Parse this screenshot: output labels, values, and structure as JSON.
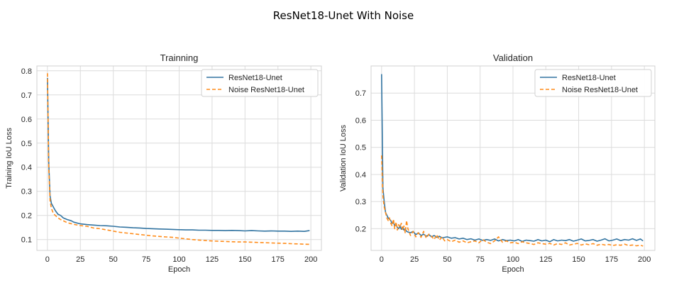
{
  "figure": {
    "title": "ResNet18-Unet With Noise"
  },
  "colors": {
    "series1": "#3274a1",
    "series2": "#ff8c1a"
  },
  "chart_data": [
    {
      "type": "line",
      "title": "Trainning",
      "xlabel": "Epoch",
      "ylabel": "Training IoU Loss",
      "xlim": [
        -8,
        208
      ],
      "ylim": [
        0.055,
        0.82
      ],
      "xticks": [
        0,
        25,
        50,
        75,
        100,
        125,
        150,
        175,
        200
      ],
      "yticks": [
        0.1,
        0.2,
        0.3,
        0.4,
        0.5,
        0.6,
        0.7,
        0.8
      ],
      "ytick_labels": [
        "0.1",
        "0.2",
        "0.3",
        "0.4",
        "0.5",
        "0.6",
        "0.7",
        "0.8"
      ],
      "grid": true,
      "legend": "top-right",
      "series": [
        {
          "name": "ResNet18-Unet",
          "style": "solid",
          "x": [
            0,
            1,
            2,
            3,
            4,
            5,
            6,
            8,
            10,
            12,
            15,
            18,
            20,
            25,
            30,
            35,
            40,
            45,
            50,
            55,
            60,
            65,
            70,
            75,
            80,
            85,
            90,
            95,
            100,
            105,
            110,
            115,
            120,
            125,
            130,
            135,
            140,
            145,
            150,
            155,
            160,
            165,
            170,
            175,
            180,
            185,
            190,
            195,
            199
          ],
          "y": [
            0.77,
            0.42,
            0.28,
            0.25,
            0.24,
            0.23,
            0.22,
            0.205,
            0.2,
            0.19,
            0.183,
            0.178,
            0.172,
            0.165,
            0.162,
            0.16,
            0.158,
            0.157,
            0.155,
            0.152,
            0.151,
            0.149,
            0.148,
            0.146,
            0.145,
            0.144,
            0.143,
            0.142,
            0.141,
            0.14,
            0.14,
            0.139,
            0.139,
            0.138,
            0.138,
            0.137,
            0.138,
            0.137,
            0.136,
            0.137,
            0.136,
            0.135,
            0.136,
            0.135,
            0.135,
            0.134,
            0.135,
            0.134,
            0.137
          ]
        },
        {
          "name": "Noise ResNet18-Unet",
          "style": "dashed",
          "x": [
            0,
            1,
            2,
            3,
            4,
            5,
            6,
            8,
            10,
            12,
            15,
            18,
            20,
            25,
            30,
            35,
            40,
            45,
            50,
            55,
            60,
            65,
            70,
            75,
            80,
            85,
            90,
            95,
            100,
            105,
            110,
            115,
            120,
            125,
            130,
            135,
            140,
            145,
            150,
            155,
            160,
            165,
            170,
            175,
            180,
            185,
            190,
            195,
            199
          ],
          "y": [
            0.79,
            0.4,
            0.26,
            0.23,
            0.215,
            0.205,
            0.2,
            0.19,
            0.183,
            0.178,
            0.17,
            0.166,
            0.163,
            0.158,
            0.155,
            0.148,
            0.145,
            0.14,
            0.135,
            0.13,
            0.127,
            0.124,
            0.121,
            0.118,
            0.115,
            0.113,
            0.111,
            0.109,
            0.106,
            0.103,
            0.1,
            0.098,
            0.096,
            0.094,
            0.093,
            0.092,
            0.091,
            0.09,
            0.09,
            0.089,
            0.088,
            0.087,
            0.086,
            0.085,
            0.084,
            0.083,
            0.082,
            0.081,
            0.08
          ]
        }
      ]
    },
    {
      "type": "line",
      "title": "Validation",
      "xlabel": "Epoch",
      "ylabel": "Validation IoU Loss",
      "xlim": [
        -8,
        208
      ],
      "ylim": [
        0.12,
        0.8
      ],
      "xticks": [
        0,
        25,
        50,
        75,
        100,
        125,
        150,
        175,
        200
      ],
      "yticks": [
        0.2,
        0.3,
        0.4,
        0.5,
        0.6,
        0.7
      ],
      "ytick_labels": [
        "0.2",
        "0.3",
        "0.4",
        "0.5",
        "0.6",
        "0.7"
      ],
      "grid": true,
      "legend": "top-right",
      "series": [
        {
          "name": "ResNet18-Unet",
          "style": "solid",
          "x": [
            0,
            1,
            2,
            3,
            4,
            5,
            6,
            7,
            8,
            9,
            10,
            11,
            12,
            13,
            14,
            15,
            16,
            17,
            18,
            19,
            20,
            22,
            24,
            26,
            28,
            30,
            32,
            34,
            36,
            38,
            40,
            42,
            44,
            46,
            48,
            50,
            53,
            56,
            59,
            62,
            65,
            68,
            71,
            74,
            77,
            80,
            83,
            86,
            89,
            92,
            95,
            98,
            101,
            104,
            107,
            110,
            113,
            116,
            119,
            122,
            125,
            128,
            131,
            134,
            137,
            140,
            143,
            146,
            149,
            152,
            155,
            158,
            161,
            164,
            167,
            170,
            173,
            176,
            179,
            182,
            185,
            188,
            191,
            194,
            197,
            199
          ],
          "y": [
            0.77,
            0.35,
            0.3,
            0.26,
            0.25,
            0.24,
            0.235,
            0.23,
            0.22,
            0.225,
            0.21,
            0.215,
            0.205,
            0.2,
            0.21,
            0.198,
            0.205,
            0.195,
            0.2,
            0.19,
            0.188,
            0.185,
            0.19,
            0.178,
            0.185,
            0.175,
            0.18,
            0.172,
            0.178,
            0.17,
            0.175,
            0.168,
            0.172,
            0.166,
            0.168,
            0.17,
            0.165,
            0.167,
            0.162,
            0.165,
            0.16,
            0.163,
            0.158,
            0.162,
            0.157,
            0.16,
            0.157,
            0.162,
            0.155,
            0.16,
            0.156,
            0.158,
            0.155,
            0.16,
            0.153,
            0.158,
            0.156,
            0.154,
            0.16,
            0.155,
            0.158,
            0.152,
            0.16,
            0.155,
            0.158,
            0.156,
            0.16,
            0.154,
            0.158,
            0.162,
            0.155,
            0.157,
            0.16,
            0.154,
            0.158,
            0.163,
            0.155,
            0.158,
            0.162,
            0.156,
            0.16,
            0.158,
            0.163,
            0.157,
            0.162,
            0.155
          ]
        },
        {
          "name": "Noise ResNet18-Unet",
          "style": "dashed",
          "x": [
            0,
            1,
            2,
            3,
            4,
            5,
            6,
            7,
            8,
            9,
            10,
            11,
            12,
            13,
            14,
            15,
            16,
            17,
            18,
            19,
            20,
            22,
            24,
            26,
            28,
            30,
            32,
            34,
            36,
            38,
            40,
            42,
            44,
            46,
            48,
            50,
            53,
            56,
            59,
            62,
            65,
            68,
            71,
            74,
            77,
            80,
            83,
            86,
            89,
            92,
            95,
            98,
            101,
            104,
            107,
            110,
            113,
            116,
            119,
            122,
            125,
            128,
            131,
            134,
            137,
            140,
            143,
            146,
            149,
            152,
            155,
            158,
            161,
            164,
            167,
            170,
            173,
            176,
            179,
            182,
            185,
            188,
            191,
            194,
            197,
            199
          ],
          "y": [
            0.47,
            0.32,
            0.28,
            0.26,
            0.24,
            0.23,
            0.24,
            0.22,
            0.21,
            0.235,
            0.2,
            0.225,
            0.195,
            0.215,
            0.205,
            0.22,
            0.195,
            0.21,
            0.185,
            0.23,
            0.2,
            0.175,
            0.19,
            0.17,
            0.185,
            0.168,
            0.19,
            0.165,
            0.18,
            0.172,
            0.16,
            0.178,
            0.158,
            0.17,
            0.155,
            0.16,
            0.152,
            0.158,
            0.15,
            0.155,
            0.148,
            0.152,
            0.155,
            0.148,
            0.16,
            0.15,
            0.145,
            0.155,
            0.17,
            0.15,
            0.155,
            0.148,
            0.15,
            0.145,
            0.152,
            0.148,
            0.145,
            0.142,
            0.148,
            0.145,
            0.143,
            0.146,
            0.14,
            0.145,
            0.142,
            0.148,
            0.14,
            0.143,
            0.146,
            0.14,
            0.144,
            0.141,
            0.145,
            0.139,
            0.143,
            0.14,
            0.142,
            0.138,
            0.141,
            0.139,
            0.143,
            0.138,
            0.14,
            0.137,
            0.139,
            0.136
          ]
        }
      ]
    }
  ]
}
